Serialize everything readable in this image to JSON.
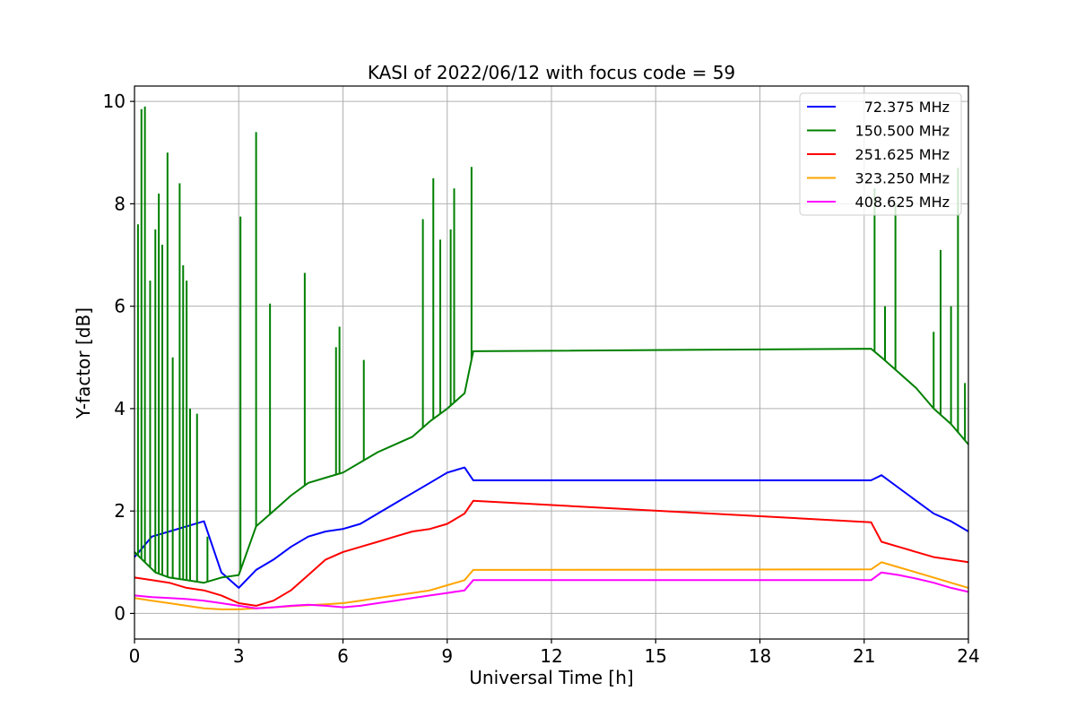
{
  "chart_data": {
    "type": "line",
    "title": "KASI of 2022/06/12 with focus code = 59",
    "xlabel": "Universal Time [h]",
    "ylabel": "Y-factor [dB]",
    "xlim": [
      0,
      24
    ],
    "ylim": [
      -0.5,
      10.3
    ],
    "xticks": [
      0,
      3,
      6,
      9,
      12,
      15,
      18,
      21,
      24
    ],
    "yticks": [
      0,
      2,
      4,
      6,
      8,
      10
    ],
    "grid": true,
    "legend_position": "top-right",
    "series": [
      {
        "name": "72.375 MHz",
        "color": "#0000ff",
        "x": [
          0,
          0.5,
          1.0,
          1.5,
          2.0,
          2.5,
          3.0,
          3.5,
          4.0,
          4.5,
          5.0,
          5.5,
          6.0,
          6.5,
          7.0,
          7.5,
          8.0,
          8.5,
          9.0,
          9.5,
          9.75,
          21.2,
          21.5,
          22.0,
          22.5,
          23.0,
          23.5,
          24.0
        ],
        "y": [
          1.1,
          1.5,
          1.6,
          1.7,
          1.8,
          0.8,
          0.5,
          0.85,
          1.05,
          1.3,
          1.5,
          1.6,
          1.65,
          1.75,
          1.95,
          2.15,
          2.35,
          2.55,
          2.75,
          2.85,
          2.6,
          2.6,
          2.7,
          2.45,
          2.2,
          1.95,
          1.8,
          1.6
        ]
      },
      {
        "name": "150.500 MHz",
        "color": "#008000",
        "x": [
          0,
          0.3,
          0.6,
          1.0,
          1.5,
          2.0,
          2.5,
          3.0,
          3.5,
          4.0,
          4.5,
          5.0,
          5.5,
          6.0,
          6.5,
          7.0,
          7.5,
          8.0,
          8.5,
          9.0,
          9.5,
          9.75,
          21.2,
          21.5,
          22.0,
          22.5,
          23.0,
          23.5,
          24.0
        ],
        "y": [
          1.2,
          1.0,
          0.8,
          0.7,
          0.65,
          0.6,
          0.7,
          0.75,
          1.7,
          2.0,
          2.3,
          2.55,
          2.65,
          2.75,
          2.95,
          3.15,
          3.3,
          3.45,
          3.75,
          4.0,
          4.3,
          5.12,
          5.17,
          5.0,
          4.7,
          4.4,
          4.0,
          3.7,
          3.3
        ],
        "spikes": [
          [
            0.1,
            7.6
          ],
          [
            0.2,
            9.85
          ],
          [
            0.3,
            9.9
          ],
          [
            0.45,
            6.5
          ],
          [
            0.6,
            7.5
          ],
          [
            0.7,
            8.2
          ],
          [
            0.8,
            7.2
          ],
          [
            0.95,
            9.0
          ],
          [
            1.1,
            5.0
          ],
          [
            1.3,
            8.4
          ],
          [
            1.4,
            6.8
          ],
          [
            1.5,
            6.5
          ],
          [
            1.6,
            4.0
          ],
          [
            1.8,
            3.9
          ],
          [
            2.1,
            1.5
          ],
          [
            3.05,
            7.75
          ],
          [
            3.5,
            9.4
          ],
          [
            3.9,
            6.05
          ],
          [
            4.9,
            6.65
          ],
          [
            5.8,
            5.2
          ],
          [
            5.9,
            5.6
          ],
          [
            6.6,
            4.95
          ],
          [
            8.3,
            7.7
          ],
          [
            8.6,
            8.5
          ],
          [
            8.8,
            7.3
          ],
          [
            9.1,
            7.5
          ],
          [
            9.2,
            8.3
          ],
          [
            9.7,
            8.72
          ],
          [
            21.3,
            8.3
          ],
          [
            21.6,
            6.0
          ],
          [
            21.9,
            8.0
          ],
          [
            23.0,
            5.5
          ],
          [
            23.2,
            7.1
          ],
          [
            23.5,
            6.0
          ],
          [
            23.7,
            8.7
          ],
          [
            23.9,
            4.5
          ]
        ]
      },
      {
        "name": "251.625 MHz",
        "color": "#ff0000",
        "x": [
          0,
          0.5,
          1.0,
          1.5,
          2.0,
          2.5,
          3.0,
          3.5,
          4.0,
          4.5,
          5.0,
          5.5,
          6.0,
          6.5,
          7.0,
          7.5,
          8.0,
          8.5,
          9.0,
          9.5,
          9.75,
          21.2,
          21.5,
          22.0,
          22.5,
          23.0,
          23.5,
          24.0
        ],
        "y": [
          0.7,
          0.65,
          0.6,
          0.5,
          0.45,
          0.35,
          0.2,
          0.15,
          0.25,
          0.45,
          0.75,
          1.05,
          1.2,
          1.3,
          1.4,
          1.5,
          1.6,
          1.65,
          1.75,
          1.95,
          2.2,
          1.78,
          1.4,
          1.3,
          1.2,
          1.1,
          1.05,
          1.0
        ]
      },
      {
        "name": "323.250 MHz",
        "color": "#ffa500",
        "x": [
          0,
          0.5,
          1.0,
          1.5,
          2.0,
          2.5,
          3.0,
          3.5,
          4.0,
          4.5,
          5.0,
          5.5,
          6.0,
          6.5,
          7.0,
          7.5,
          8.0,
          8.5,
          9.0,
          9.5,
          9.75,
          21.2,
          21.5,
          22.0,
          22.5,
          23.0,
          23.5,
          24.0
        ],
        "y": [
          0.3,
          0.25,
          0.2,
          0.15,
          0.1,
          0.08,
          0.08,
          0.1,
          0.12,
          0.14,
          0.16,
          0.18,
          0.2,
          0.25,
          0.3,
          0.35,
          0.4,
          0.45,
          0.55,
          0.65,
          0.85,
          0.86,
          1.0,
          0.9,
          0.8,
          0.7,
          0.6,
          0.5
        ]
      },
      {
        "name": "408.625 MHz",
        "color": "#ff00ff",
        "x": [
          0,
          0.5,
          1.0,
          1.5,
          2.0,
          2.5,
          3.0,
          3.5,
          4.0,
          4.5,
          5.0,
          5.5,
          6.0,
          6.5,
          7.0,
          7.5,
          8.0,
          8.5,
          9.0,
          9.5,
          9.75,
          21.2,
          21.5,
          22.0,
          22.5,
          23.0,
          23.5,
          24.0
        ],
        "y": [
          0.35,
          0.32,
          0.3,
          0.28,
          0.25,
          0.2,
          0.15,
          0.1,
          0.12,
          0.15,
          0.17,
          0.15,
          0.12,
          0.15,
          0.2,
          0.25,
          0.3,
          0.35,
          0.4,
          0.45,
          0.65,
          0.65,
          0.8,
          0.75,
          0.68,
          0.6,
          0.5,
          0.42
        ]
      }
    ]
  }
}
